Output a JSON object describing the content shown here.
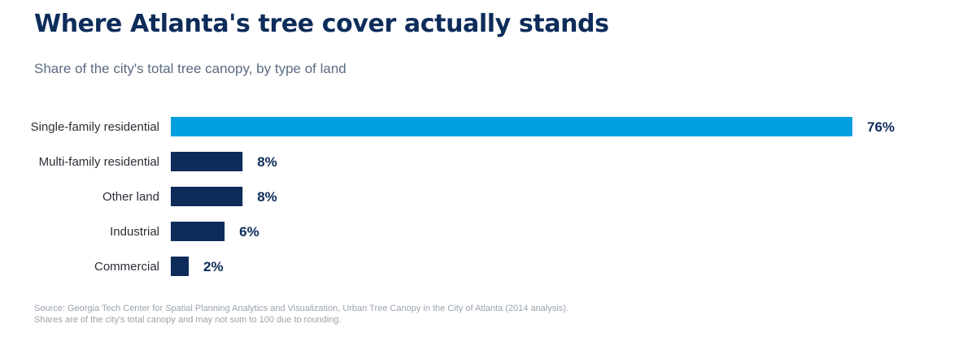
{
  "header": {
    "title": "Where Atlanta's tree cover actually stands",
    "subtitle": "Share of the city's total tree canopy, by type of land"
  },
  "chart_data": {
    "type": "bar",
    "orientation": "horizontal",
    "categories": [
      "Single-family residential",
      "Multi-family residential",
      "Other land",
      "Industrial",
      "Commercial"
    ],
    "values": [
      76,
      8,
      8,
      6,
      2
    ],
    "value_labels": [
      "76%",
      "8%",
      "8%",
      "6%",
      "2%"
    ],
    "unit": "%",
    "title": "Where Atlanta's tree cover actually stands",
    "subtitle": "Share of the city's total tree canopy, by type of land",
    "xlabel": "",
    "ylabel": "",
    "xlim": [
      0,
      76
    ],
    "grid": false,
    "legend": "none",
    "colors": {
      "highlight": "#00a0e0",
      "default": "#0d2c5a"
    },
    "highlight_index": 0
  },
  "footer": {
    "source": "Source: Georgia Tech Center for Spatial Planning Analytics and Visualization, Urban Tree Canopy in the City of Atlanta (2014 analysis).",
    "note": "Shares are of the city's total canopy and may not sum to 100 due to rounding."
  }
}
